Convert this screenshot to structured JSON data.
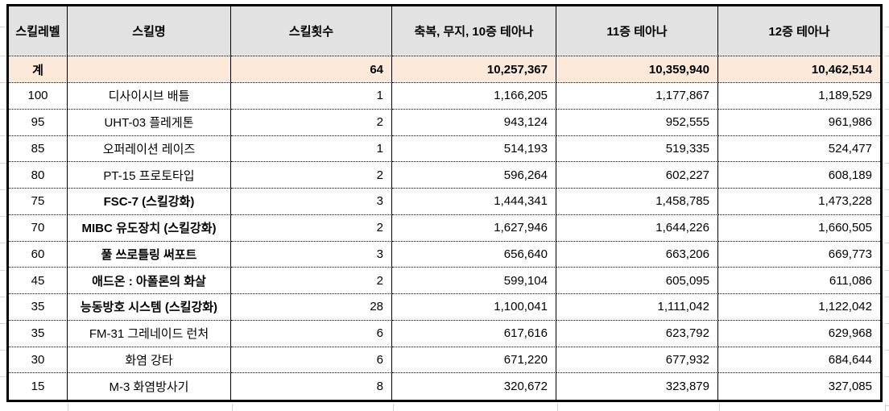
{
  "table": {
    "columns": [
      {
        "label": "스킬레벨"
      },
      {
        "label": "스킬명"
      },
      {
        "label": "스킬횟수"
      },
      {
        "label": "축복, 무지, 10증 테아나"
      },
      {
        "label": "11증 테아나"
      },
      {
        "label": "12증 테아나"
      }
    ],
    "total_row": {
      "level": "계",
      "name": "",
      "count": "64",
      "v10": "10,257,367",
      "v11": "10,359,940",
      "v12": "10,462,514"
    },
    "rows": [
      {
        "level": "100",
        "name": "디사이시브 배틀",
        "count": "1",
        "v10": "1,166,205",
        "v11": "1,177,867",
        "v12": "1,189,529",
        "bold": false
      },
      {
        "level": "95",
        "name": "UHT-03 플레게톤",
        "count": "2",
        "v10": "943,124",
        "v11": "952,555",
        "v12": "961,986",
        "bold": false
      },
      {
        "level": "85",
        "name": "오퍼레이션 레이즈",
        "count": "1",
        "v10": "514,193",
        "v11": "519,335",
        "v12": "524,477",
        "bold": false
      },
      {
        "level": "80",
        "name": "PT-15 프로토타입",
        "count": "2",
        "v10": "596,264",
        "v11": "602,227",
        "v12": "608,189",
        "bold": false
      },
      {
        "level": "75",
        "name": "FSC-7 (스킬강화)",
        "count": "3",
        "v10": "1,444,341",
        "v11": "1,458,785",
        "v12": "1,473,228",
        "bold": true
      },
      {
        "level": "70",
        "name": "MIBC 유도장치 (스킬강화)",
        "count": "2",
        "v10": "1,627,946",
        "v11": "1,644,226",
        "v12": "1,660,505",
        "bold": true
      },
      {
        "level": "60",
        "name": "풀 쓰로틀링 써포트",
        "count": "3",
        "v10": "656,640",
        "v11": "663,206",
        "v12": "669,773",
        "bold": true
      },
      {
        "level": "45",
        "name": "애드온 : 아폴론의 화살",
        "count": "2",
        "v10": "599,104",
        "v11": "605,095",
        "v12": "611,086",
        "bold": true
      },
      {
        "level": "35",
        "name": "능동방호 시스템 (스킬강화)",
        "count": "28",
        "v10": "1,100,041",
        "v11": "1,111,042",
        "v12": "1,122,042",
        "bold": true
      },
      {
        "level": "35",
        "name": "FM-31 그레네이드 런처",
        "count": "6",
        "v10": "617,616",
        "v11": "623,792",
        "v12": "629,968",
        "bold": false
      },
      {
        "level": "30",
        "name": "화염 강타",
        "count": "6",
        "v10": "671,220",
        "v11": "677,932",
        "v12": "684,644",
        "bold": false
      },
      {
        "level": "15",
        "name": "M-3 화염방사기",
        "count": "8",
        "v10": "320,672",
        "v11": "323,879",
        "v12": "327,085",
        "bold": false
      }
    ]
  },
  "colors": {
    "header_bg": "#e2e2e2",
    "total_bg": "#fce9d9",
    "border": "#000000",
    "gridline": "#d4d4d4"
  }
}
